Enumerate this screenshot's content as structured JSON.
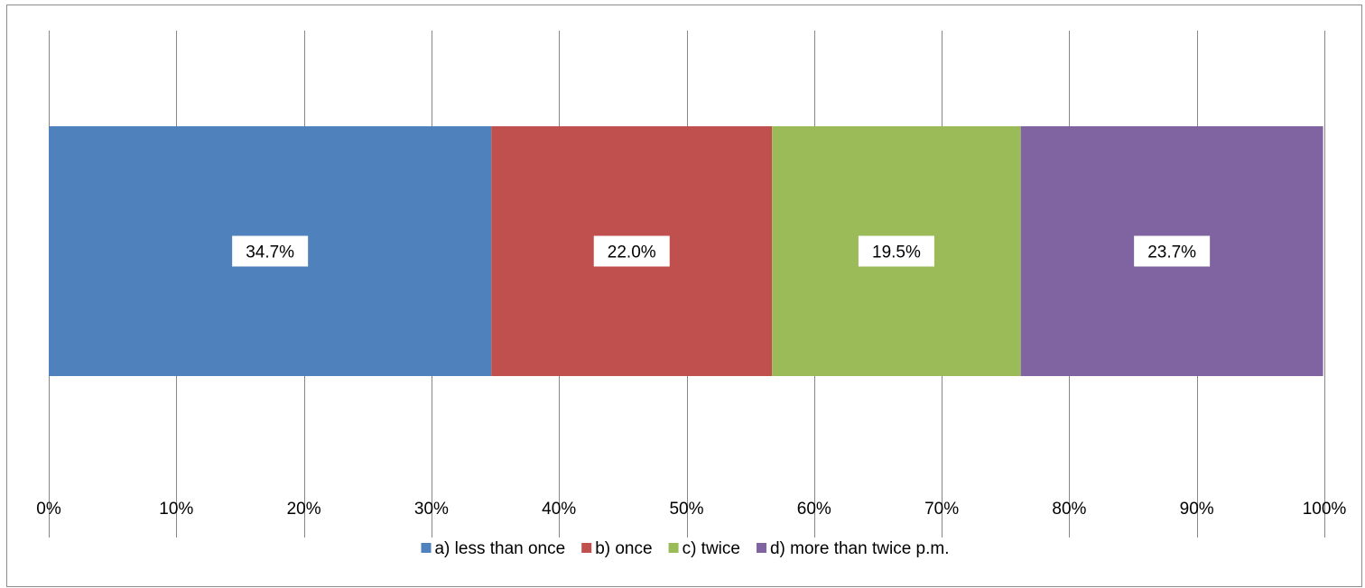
{
  "chart_data": {
    "type": "bar",
    "orientation": "horizontal",
    "stacked": "percent",
    "categories": [
      ""
    ],
    "series": [
      {
        "name": "a) less than once",
        "values": [
          34.7
        ],
        "label": "34.7%",
        "color": "#4f81bd"
      },
      {
        "name": "b) once",
        "values": [
          22.0
        ],
        "label": "22.0%",
        "color": "#c0504d"
      },
      {
        "name": "c) twice",
        "values": [
          19.5
        ],
        "label": "19.5%",
        "color": "#9bbb59"
      },
      {
        "name": "d) more than twice p.m.",
        "values": [
          23.7
        ],
        "label": "23.7%",
        "color": "#8064a2"
      }
    ],
    "title": "",
    "xlabel": "",
    "ylabel": "",
    "xlim": [
      0,
      100
    ],
    "x_ticks": [
      0,
      10,
      20,
      30,
      40,
      50,
      60,
      70,
      80,
      90,
      100
    ],
    "x_tick_labels": [
      "0%",
      "10%",
      "20%",
      "30%",
      "40%",
      "50%",
      "60%",
      "70%",
      "80%",
      "90%",
      "100%"
    ],
    "grid": "vertical",
    "legend_position": "bottom",
    "gridline_color": "#868686"
  }
}
